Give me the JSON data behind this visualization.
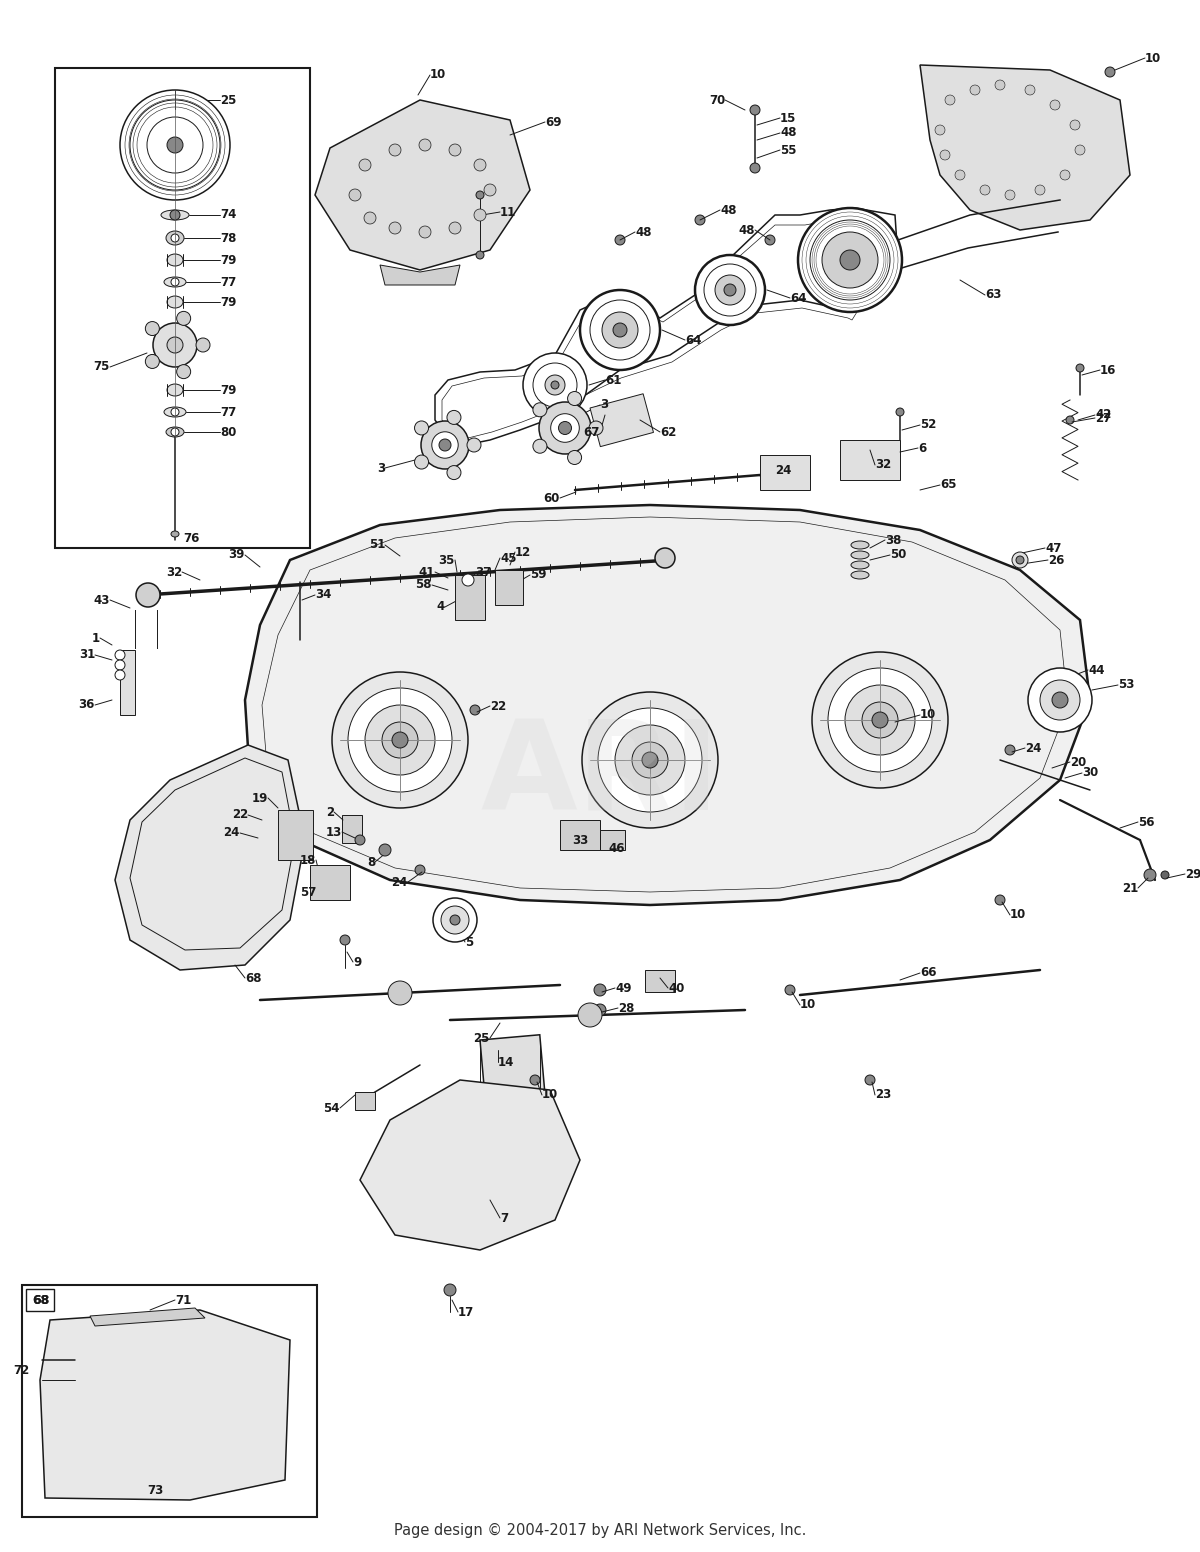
{
  "footer": "Page design © 2004-2017 by ARI Network Services, Inc.",
  "footer_fontsize": 10.5,
  "background_color": "#ffffff",
  "line_color": "#1a1a1a",
  "figsize": [
    12.0,
    15.52
  ],
  "dpi": 100,
  "watermark": "ARI",
  "watermark_color": "#d0d0d0",
  "watermark_fontsize": 90,
  "watermark_alpha": 0.22,
  "lw_thin": 0.7,
  "lw_med": 1.1,
  "lw_thick": 1.8,
  "lw_vthick": 2.5
}
